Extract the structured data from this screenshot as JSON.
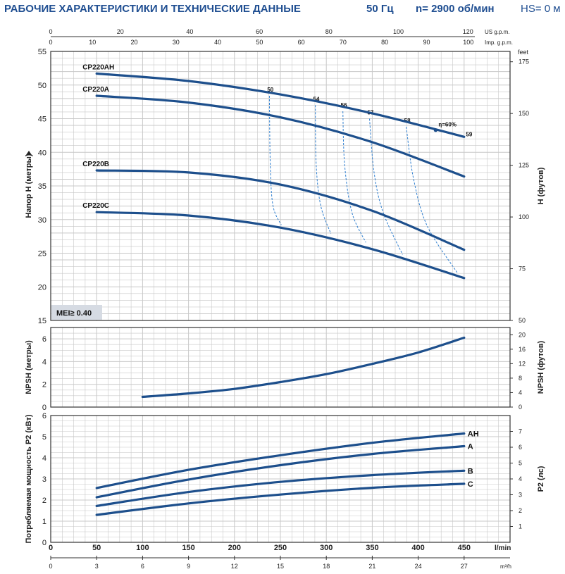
{
  "header": {
    "title": "РАБОЧИЕ ХАРАКТЕРИСТИКИ И ТЕХНИЧЕСКИЕ ДАННЫЕ",
    "freq": "50 Гц",
    "speed": "n= 2900 об/мин",
    "hs": "HS= 0 м"
  },
  "colors": {
    "curve": "#1d4f8c",
    "dashed": "#2f7fd0",
    "grid": "#c8c8c8",
    "header": "#1f4e91",
    "mei_bg": "#d6dbe3"
  },
  "chart_data": [
    {
      "type": "line",
      "title": "",
      "ylabel": "Напор H (метры)",
      "y2label": "H (футов)",
      "ylim": [
        15,
        55
      ],
      "yticks": [
        15,
        20,
        25,
        30,
        35,
        40,
        45,
        50,
        55
      ],
      "y2unit": "feet",
      "y2ticks": [
        50,
        75,
        100,
        125,
        150,
        175
      ],
      "top_axes": [
        {
          "unit": "US g.p.m.",
          "max": 120,
          "ticks": [
            0,
            20,
            40,
            60,
            80,
            100,
            120
          ]
        },
        {
          "unit": "Imp. g.p.m.",
          "max": 100,
          "ticks": [
            0,
            10,
            20,
            30,
            40,
            50,
            60,
            70,
            80,
            90,
            100
          ]
        }
      ],
      "mei_label": "MEI≥ 0.40",
      "series": [
        {
          "name": "CP220AH",
          "x": [
            50,
            150,
            250,
            350,
            450
          ],
          "values": [
            51.7,
            50.6,
            48.6,
            45.8,
            42.3
          ]
        },
        {
          "name": "CP220A",
          "x": [
            50,
            150,
            250,
            350,
            450
          ],
          "values": [
            48.4,
            47.4,
            45.2,
            41.5,
            36.4
          ]
        },
        {
          "name": "CP220B",
          "x": [
            50,
            150,
            250,
            350,
            450
          ],
          "values": [
            37.3,
            37.0,
            35.2,
            31.3,
            25.5
          ]
        },
        {
          "name": "CP220C",
          "x": [
            50,
            150,
            250,
            350,
            450
          ],
          "values": [
            31.1,
            30.6,
            28.8,
            25.6,
            21.3
          ]
        }
      ],
      "efficiency_lines": [
        {
          "label": "50",
          "points": [
            [
              238,
              48.4
            ],
            [
              239,
              38
            ],
            [
              242,
              32
            ],
            [
              251,
              29.2
            ]
          ]
        },
        {
          "label": "54",
          "points": [
            [
              288,
              47.0
            ],
            [
              289,
              38
            ],
            [
              294,
              32
            ],
            [
              305,
              27.9
            ]
          ]
        },
        {
          "label": "56",
          "points": [
            [
              318,
              46.1
            ],
            [
              320,
              38
            ],
            [
              328,
              31
            ],
            [
              343,
              26.6
            ]
          ]
        },
        {
          "label": "57",
          "points": [
            [
              347,
              45.0
            ],
            [
              352,
              37
            ],
            [
              362,
              31
            ],
            [
              383,
              24.8
            ]
          ]
        },
        {
          "label": "58",
          "points": [
            [
              387,
              43.8
            ],
            [
              395,
              36
            ],
            [
              410,
              29
            ],
            [
              443,
              22.0
            ]
          ]
        },
        {
          "label": "59",
          "points": []
        }
      ],
      "eta_label": "η=60%",
      "eta_point": [
        419,
        43.3
      ]
    },
    {
      "type": "line",
      "ylabel": "NPSH (метры)",
      "y2label": "NPSH (футов)",
      "ylim": [
        0,
        7
      ],
      "yticks": [
        0,
        2,
        4,
        6
      ],
      "y2ticks": [
        0,
        4,
        8,
        12,
        16,
        20
      ],
      "series": [
        {
          "name": "",
          "x": [
            100,
            150,
            200,
            250,
            300,
            350,
            400,
            450
          ],
          "values": [
            0.9,
            1.2,
            1.6,
            2.2,
            2.9,
            3.8,
            4.8,
            6.1
          ]
        }
      ]
    },
    {
      "type": "line",
      "ylabel": "Потребляемая мощность P2 (кВт)",
      "y2label": "P2 (лс)",
      "ylim": [
        0,
        6
      ],
      "yticks": [
        0,
        1,
        2,
        3,
        4,
        5,
        6
      ],
      "y2ticks": [
        1,
        2,
        3,
        4,
        5,
        6,
        7
      ],
      "xlabel": "l/min",
      "xticks": [
        0,
        50,
        100,
        150,
        200,
        250,
        300,
        350,
        400,
        450
      ],
      "x2unit": "m³/h",
      "x2ticks": [
        0,
        3,
        6,
        9,
        12,
        15,
        18,
        21,
        24,
        27
      ],
      "series": [
        {
          "name": "AH",
          "x": [
            50,
            150,
            250,
            350,
            450
          ],
          "values": [
            2.57,
            3.43,
            4.12,
            4.71,
            5.15
          ]
        },
        {
          "name": "A",
          "x": [
            50,
            150,
            250,
            350,
            450
          ],
          "values": [
            2.13,
            2.97,
            3.65,
            4.18,
            4.55
          ]
        },
        {
          "name": "B",
          "x": [
            50,
            150,
            250,
            350,
            450
          ],
          "values": [
            1.72,
            2.38,
            2.86,
            3.18,
            3.39
          ]
        },
        {
          "name": "C",
          "x": [
            50,
            150,
            250,
            350,
            450
          ],
          "values": [
            1.3,
            1.84,
            2.26,
            2.58,
            2.77
          ]
        }
      ]
    }
  ]
}
